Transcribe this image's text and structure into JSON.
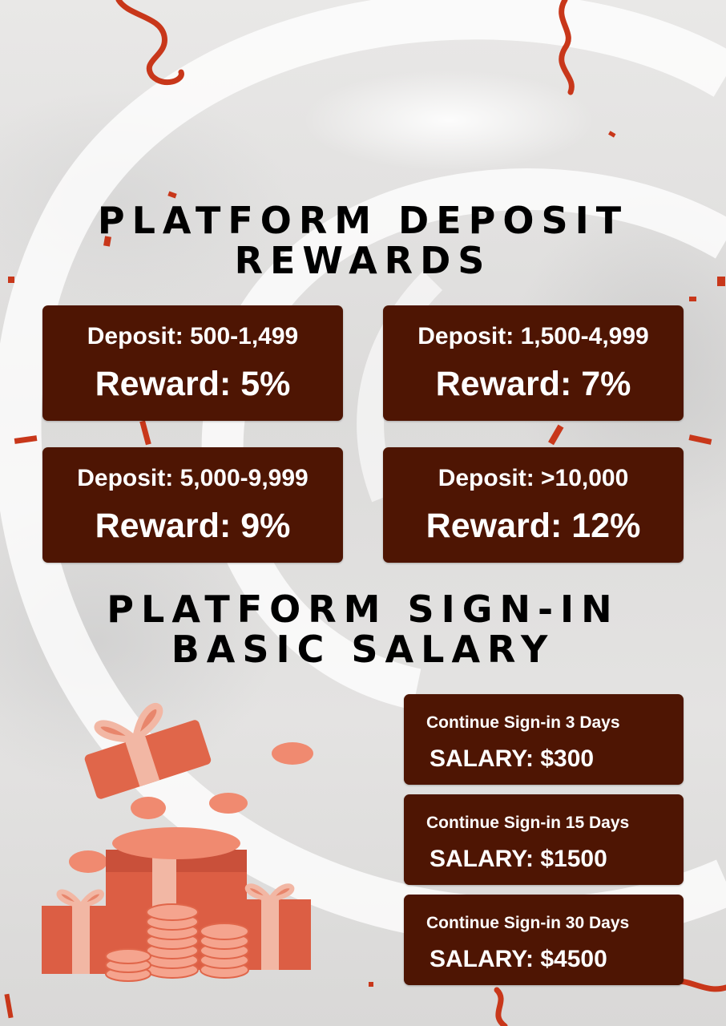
{
  "deposit_section": {
    "title_line1": "PLATFORM DEPOSIT",
    "title_line2": "REWARDS",
    "cards": [
      {
        "deposit": "Deposit: 500-1,499",
        "reward": "Reward: 5%"
      },
      {
        "deposit": "Deposit: 1,500-4,999",
        "reward": "Reward: 7%"
      },
      {
        "deposit": "Deposit: 5,000-9,999",
        "reward": "Reward: 9%"
      },
      {
        "deposit": "Deposit: >10,000",
        "reward": "Reward: 12%"
      }
    ]
  },
  "salary_section": {
    "title_line1": "PLATFORM SIGN-IN",
    "title_line2": "BASIC SALARY",
    "cards": [
      {
        "condition": "Continue Sign-in 3 Days",
        "salary": "SALARY: $300"
      },
      {
        "condition": "Continue Sign-in 15 Days",
        "salary": "SALARY: $1500"
      },
      {
        "condition": "Continue Sign-in 30 Days",
        "salary": "SALARY: $4500"
      }
    ]
  },
  "colors": {
    "card_background": "#4e1503",
    "card_text": "#ffffff",
    "heading_text": "#000000",
    "confetti": "#c8371a",
    "gift": "#e0664a"
  },
  "icons": [
    "gift-box-icon",
    "coin-stack-icon",
    "confetti-ribbon-icon"
  ]
}
